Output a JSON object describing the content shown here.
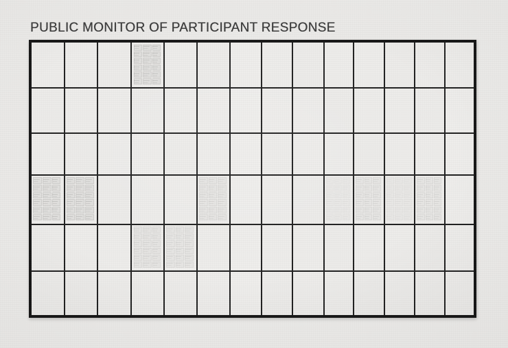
{
  "artwork": {
    "title": "PUBLIC MONITOR OF PARTICIPANT RESPONSE"
  },
  "grid": {
    "rows": 6,
    "columns": 14,
    "stamp_pattern": {
      "columns": 3,
      "rows": 6
    },
    "stamped_cells": [
      {
        "row": 1,
        "col": 4,
        "intensity": "medium"
      },
      {
        "row": 4,
        "col": 1,
        "intensity": "medium"
      },
      {
        "row": 4,
        "col": 2,
        "intensity": "medium"
      },
      {
        "row": 4,
        "col": 6,
        "intensity": "light"
      },
      {
        "row": 4,
        "col": 10,
        "intensity": "faint"
      },
      {
        "row": 4,
        "col": 11,
        "intensity": "light"
      },
      {
        "row": 4,
        "col": 12,
        "intensity": "faint"
      },
      {
        "row": 4,
        "col": 13,
        "intensity": "light"
      },
      {
        "row": 5,
        "col": 4,
        "intensity": "light"
      },
      {
        "row": 5,
        "col": 5,
        "intensity": "light"
      }
    ]
  },
  "colors": {
    "background": "#e8e7e5",
    "cell": "#edecea",
    "grid_line": "#212121",
    "border": "#171717",
    "title_text": "#3b3b3b",
    "stamp": "#918f8c"
  }
}
